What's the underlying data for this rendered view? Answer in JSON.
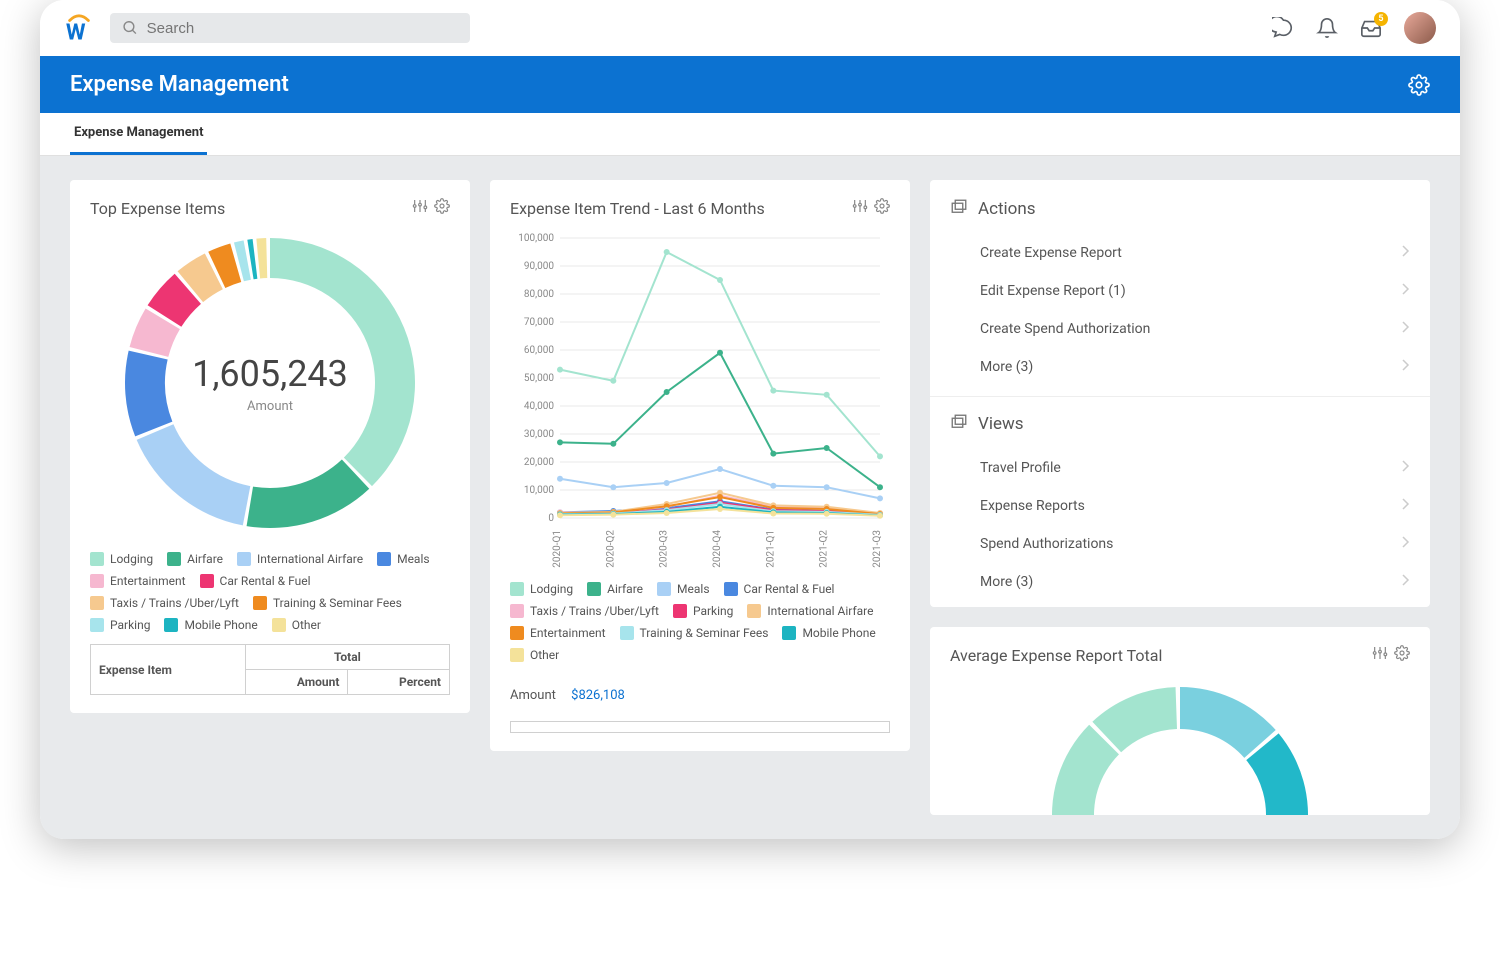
{
  "topbar": {
    "search_placeholder": "Search",
    "inbox_badge": "5"
  },
  "bluebar": {
    "title": "Expense Management"
  },
  "tab": {
    "label": "Expense Management"
  },
  "top_expense": {
    "title": "Top Expense Items",
    "donut": {
      "center_value": "1,605,243",
      "center_label": "Amount",
      "ring_thickness": 40,
      "background_color": "#ffffff",
      "segments": [
        {
          "label": "Lodging",
          "value": 38,
          "color": "#a3e4cf"
        },
        {
          "label": "Airfare",
          "value": 15,
          "color": "#3cb28b"
        },
        {
          "label": "International Airfare",
          "value": 16,
          "color": "#a9d0f5"
        },
        {
          "label": "Meals",
          "value": 10,
          "color": "#4a88e0"
        },
        {
          "label": "Entertainment",
          "value": 5,
          "color": "#f6b8d0"
        },
        {
          "label": "Car Rental & Fuel",
          "value": 5,
          "color": "#ed3572"
        },
        {
          "label": "Taxis / Trains /Uber/Lyft",
          "value": 4,
          "color": "#f6c98f"
        },
        {
          "label": "Training & Seminar Fees",
          "value": 3,
          "color": "#ef8b1f"
        },
        {
          "label": "Parking",
          "value": 1.5,
          "color": "#a7e4ec"
        },
        {
          "label": "Mobile Phone",
          "value": 1,
          "color": "#1db4c1"
        },
        {
          "label": "Other",
          "value": 1.5,
          "color": "#f4e29a"
        }
      ]
    },
    "table": {
      "col_expense_item": "Expense Item",
      "col_total": "Total",
      "col_amount": "Amount",
      "col_percent": "Percent"
    }
  },
  "trend": {
    "title": "Expense Item Trend - Last 6 Months",
    "y_max": 100000,
    "y_step": 10000,
    "y_ticks": [
      "0",
      "10,000",
      "20,000",
      "30,000",
      "40,000",
      "50,000",
      "60,000",
      "70,000",
      "80,000",
      "90,000",
      "100,000"
    ],
    "x_labels": [
      "2020-Q1",
      "2020-Q2",
      "2020-Q3",
      "2020-Q4",
      "2021-Q1",
      "2021-Q2",
      "2021-Q3"
    ],
    "grid_color": "#e8e8e8",
    "axis_color": "#cccccc",
    "tick_fontsize": 10,
    "line_width": 2,
    "marker_radius": 3,
    "series": [
      {
        "label": "Lodging",
        "color": "#a3e4cf",
        "values": [
          53000,
          49000,
          95000,
          85000,
          45500,
          44000,
          22000
        ]
      },
      {
        "label": "Airfare",
        "color": "#3cb28b",
        "values": [
          27000,
          26500,
          45000,
          59000,
          23000,
          25000,
          11000
        ]
      },
      {
        "label": "Meals",
        "color": "#a9d0f5",
        "values": [
          14000,
          11000,
          12500,
          17500,
          11500,
          11000,
          7000
        ]
      },
      {
        "label": "Car Rental & Fuel",
        "color": "#4a88e0",
        "values": [
          2000,
          2500,
          3500,
          6000,
          3000,
          2500,
          1500
        ]
      },
      {
        "label": "Taxis / Trains /Uber/Lyft",
        "color": "#f6b8d0",
        "values": [
          2000,
          2000,
          4000,
          8000,
          4000,
          3500,
          1500
        ]
      },
      {
        "label": "Parking",
        "color": "#ed3572",
        "values": [
          1500,
          1800,
          3000,
          5500,
          2800,
          2500,
          1200
        ]
      },
      {
        "label": "International Airfare",
        "color": "#f6c98f",
        "values": [
          1800,
          2200,
          5000,
          9000,
          4500,
          4000,
          1800
        ]
      },
      {
        "label": "Entertainment",
        "color": "#ef8b1f",
        "values": [
          1600,
          2000,
          4200,
          7500,
          3600,
          3200,
          1400
        ]
      },
      {
        "label": "Training & Seminar Fees",
        "color": "#a7e4ec",
        "values": [
          1400,
          1600,
          2800,
          5000,
          2400,
          2200,
          1100
        ]
      },
      {
        "label": "Mobile Phone",
        "color": "#1db4c1",
        "values": [
          1200,
          1400,
          2200,
          4000,
          2000,
          1800,
          900
        ]
      },
      {
        "label": "Other",
        "color": "#f4e29a",
        "values": [
          1000,
          1200,
          1800,
          3200,
          1600,
          1500,
          800
        ]
      }
    ],
    "amount_label": "Amount",
    "amount_value": "$826,108"
  },
  "actions": {
    "title": "Actions",
    "items": [
      {
        "label": "Create Expense Report"
      },
      {
        "label": "Edit Expense Report (1)"
      },
      {
        "label": "Create Spend Authorization"
      },
      {
        "label": "More (3)"
      }
    ]
  },
  "views": {
    "title": "Views",
    "items": [
      {
        "label": "Travel Profile"
      },
      {
        "label": "Expense Reports"
      },
      {
        "label": "Spend Authorizations"
      },
      {
        "label": "More (3)"
      }
    ]
  },
  "avg_report": {
    "title": "Average Expense Report Total",
    "donut": {
      "ring_thickness": 42,
      "segments": [
        {
          "color": "#7ad0df",
          "value": 14
        },
        {
          "color": "#22b8c9",
          "value": 14
        },
        {
          "color": "#f4d864",
          "value": 10
        },
        {
          "color": "#a3e4cf",
          "value": 22
        },
        {
          "color": "#3cb28b",
          "value": 12
        },
        {
          "color": "#a3e4cf",
          "value": 16
        },
        {
          "color": "#a3e4cf",
          "value": 12
        }
      ]
    }
  }
}
